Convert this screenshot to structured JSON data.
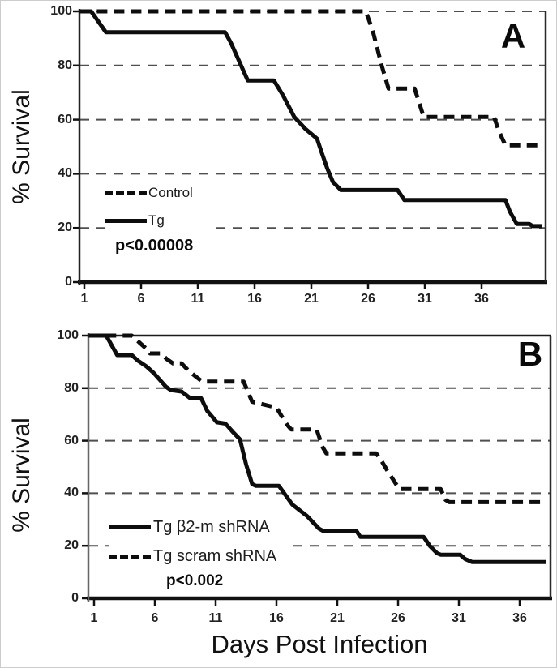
{
  "axes": {
    "x_label": "Days Post Infection",
    "y_label": "% Survival"
  },
  "panels": [
    {
      "label": "A",
      "p_value": "p<0.00008",
      "legend": [
        {
          "label": "Control",
          "style": "dashed"
        },
        {
          "label": "Tg",
          "style": "solid"
        }
      ],
      "y_tick_labels": [
        "100",
        "80",
        "60",
        "40",
        "20",
        "0"
      ],
      "x_tick_labels": [
        "1",
        "6",
        "11",
        "16",
        "21",
        "26",
        "31",
        "36"
      ]
    },
    {
      "label": "B",
      "p_value": "p<0.002",
      "legend": [
        {
          "label": "Tg β2-m shRNA",
          "style": "solid"
        },
        {
          "label": "Tg scram shRNA",
          "style": "dashed"
        }
      ],
      "y_tick_labels": [
        "100",
        "80",
        "60",
        "40",
        "20",
        "0"
      ],
      "x_tick_labels": [
        "1",
        "6",
        "11",
        "16",
        "21",
        "26",
        "31",
        "36"
      ]
    }
  ],
  "chart_data": [
    {
      "type": "line",
      "panel": "A",
      "title": "Survival of Control vs Tg mice",
      "xlabel": "Days Post Infection",
      "ylabel": "% Survival",
      "xlim": [
        1,
        41.3
      ],
      "ylim": [
        0,
        100
      ],
      "x_ticks": [
        1,
        6,
        11,
        16,
        21,
        26,
        31,
        36
      ],
      "y_ticks": [
        0,
        20,
        40,
        60,
        80,
        100
      ],
      "grid": "horizontal dashed at 20,40,60,80,100",
      "legend_position": "inside lower-left",
      "annotation": "p<0.00008",
      "series": [
        {
          "name": "Control",
          "line_style": "dashed",
          "points": [
            [
              0.6,
              100
            ],
            [
              25.8,
              100
            ],
            [
              26.4,
              93
            ],
            [
              27.2,
              80
            ],
            [
              27.8,
              71.5
            ],
            [
              30.1,
              71.5
            ],
            [
              30.9,
              61
            ],
            [
              37.1,
              61
            ],
            [
              37.5,
              56
            ],
            [
              38.1,
              50.5
            ],
            [
              41.3,
              50.5
            ]
          ]
        },
        {
          "name": "Tg",
          "line_style": "solid",
          "points": [
            [
              0.6,
              100
            ],
            [
              1.6,
              100
            ],
            [
              2.9,
              92.3
            ],
            [
              13.4,
              92.3
            ],
            [
              13.9,
              88.5
            ],
            [
              15.4,
              74.5
            ],
            [
              17.7,
              74.5
            ],
            [
              18.5,
              69
            ],
            [
              19.5,
              61
            ],
            [
              20.5,
              56.5
            ],
            [
              21.5,
              53
            ],
            [
              21.9,
              48
            ],
            [
              22.4,
              42
            ],
            [
              22.9,
              37
            ],
            [
              23.6,
              34
            ],
            [
              28.6,
              34
            ],
            [
              29.2,
              30.3
            ],
            [
              38.1,
              30.3
            ],
            [
              38.5,
              26
            ],
            [
              39.1,
              21.5
            ],
            [
              40.2,
              21.5
            ],
            [
              40.5,
              20.7
            ],
            [
              41.3,
              20.7
            ]
          ]
        }
      ]
    },
    {
      "type": "line",
      "panel": "B",
      "title": "Survival of Tg β2-m shRNA vs Tg scram shRNA mice",
      "xlabel": "Days Post Infection",
      "ylabel": "% Survival",
      "xlim": [
        1,
        38.2
      ],
      "ylim": [
        0,
        100
      ],
      "x_ticks": [
        1,
        6,
        11,
        16,
        21,
        26,
        31,
        36
      ],
      "y_ticks": [
        0,
        20,
        40,
        60,
        80,
        100
      ],
      "grid": "horizontal dashed at 20,40,60,80",
      "legend_position": "inside lower-left",
      "annotation": "p<0.002",
      "series": [
        {
          "name": "Tg scram shRNA",
          "line_style": "dashed",
          "points": [
            [
              0.55,
              100
            ],
            [
              4.1,
              100
            ],
            [
              4.7,
              97.5
            ],
            [
              5.3,
              95
            ],
            [
              5.6,
              93.2
            ],
            [
              6.5,
              93.2
            ],
            [
              7.0,
              91
            ],
            [
              7.5,
              89.4
            ],
            [
              8.2,
              89.4
            ],
            [
              8.8,
              86.5
            ],
            [
              9.4,
              84.3
            ],
            [
              9.9,
              82.5
            ],
            [
              13.3,
              82.5
            ],
            [
              14.0,
              74.8
            ],
            [
              16.0,
              72.6
            ],
            [
              16.8,
              66.5
            ],
            [
              17.2,
              64.3
            ],
            [
              19.3,
              64.3
            ],
            [
              19.8,
              57.5
            ],
            [
              20.1,
              55.2
            ],
            [
              24.2,
              55.2
            ],
            [
              24.6,
              52.6
            ],
            [
              25.2,
              48
            ],
            [
              25.8,
              43.7
            ],
            [
              26.1,
              41.6
            ],
            [
              29.5,
              41.6
            ],
            [
              29.9,
              37.5
            ],
            [
              30.2,
              36.6
            ],
            [
              38.2,
              36.6
            ]
          ]
        },
        {
          "name": "Tg β2-m shRNA",
          "line_style": "solid",
          "points": [
            [
              0.55,
              100
            ],
            [
              2.0,
              100
            ],
            [
              2.9,
              92.6
            ],
            [
              4.1,
              92.6
            ],
            [
              4.6,
              90.5
            ],
            [
              5.3,
              88.3
            ],
            [
              5.9,
              85.8
            ],
            [
              6.9,
              80.6
            ],
            [
              7.3,
              79.3
            ],
            [
              8.2,
              78.7
            ],
            [
              8.9,
              76.2
            ],
            [
              9.8,
              76.2
            ],
            [
              10.3,
              71.4
            ],
            [
              11.1,
              67
            ],
            [
              11.8,
              66.5
            ],
            [
              12.4,
              63.4
            ],
            [
              13.0,
              60.5
            ],
            [
              13.5,
              51
            ],
            [
              14.0,
              43.5
            ],
            [
              14.3,
              42.8
            ],
            [
              16.2,
              42.8
            ],
            [
              17.3,
              35.7
            ],
            [
              18.5,
              31.4
            ],
            [
              19.5,
              26.5
            ],
            [
              19.9,
              25.5
            ],
            [
              22.6,
              25.5
            ],
            [
              22.9,
              23.4
            ],
            [
              28.1,
              23.4
            ],
            [
              28.6,
              20
            ],
            [
              29.2,
              17.2
            ],
            [
              29.5,
              16.6
            ],
            [
              31.1,
              16.6
            ],
            [
              31.5,
              15
            ],
            [
              32.1,
              13.8
            ],
            [
              38.2,
              13.8
            ]
          ]
        }
      ]
    }
  ],
  "colors": {
    "curve": "#0d0d0d",
    "gridline": "#4f4f4f",
    "axis": "#111111",
    "text": "#1c1c1c"
  }
}
